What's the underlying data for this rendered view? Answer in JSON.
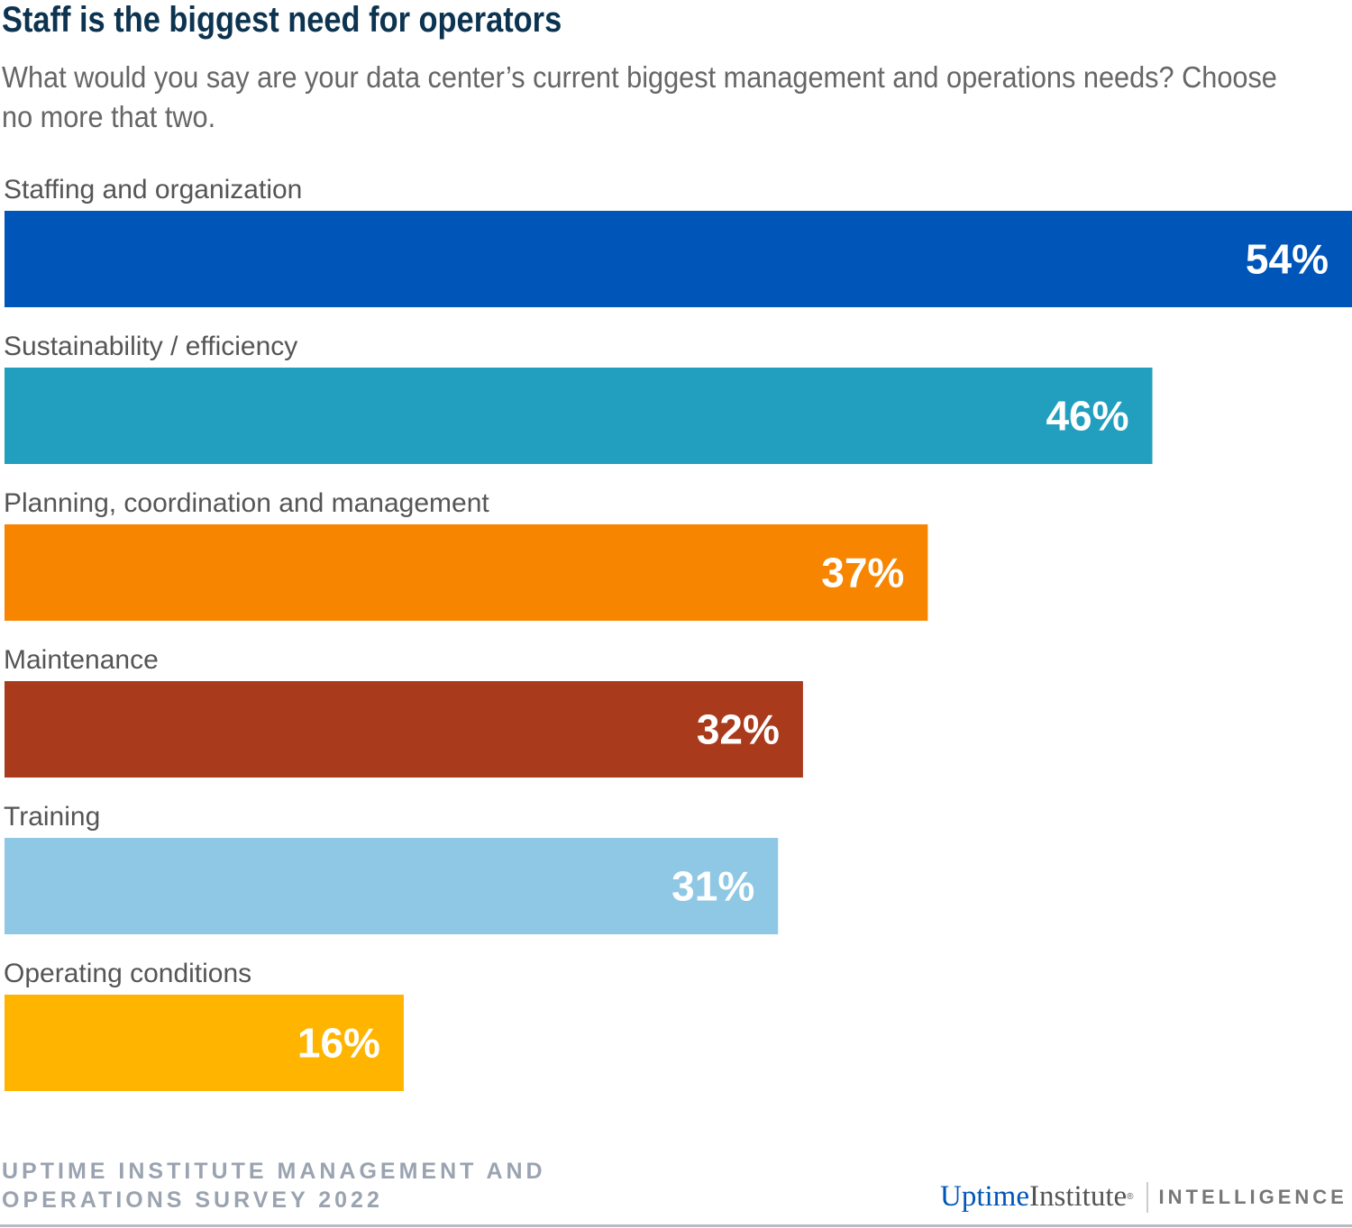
{
  "chart_data": {
    "type": "bar",
    "orientation": "horizontal",
    "title": "Staff is the biggest need for operators",
    "subtitle": "What would you say are your data center’s current biggest management and operations needs? Choose no more that two.",
    "categories": [
      "Staffing and organization",
      "Sustainability / efficiency",
      "Planning, coordination and management",
      "Maintenance",
      "Training",
      "Operating conditions"
    ],
    "values": [
      54,
      46,
      37,
      32,
      31,
      16
    ],
    "value_labels": [
      "54%",
      "46%",
      "37%",
      "32%",
      "31%",
      "16%"
    ],
    "colors": [
      "#0055b8",
      "#229fbe",
      "#f88500",
      "#a93b1c",
      "#8fc8e5",
      "#ffb500"
    ],
    "unit": "%",
    "xlim": [
      0,
      54
    ],
    "grid": false,
    "legend": "none"
  },
  "footer": {
    "source_line1": "UPTIME INSTITUTE MANAGEMENT AND",
    "source_line2": "OPERATIONS SURVEY 2022",
    "logo_uptime": "Uptime",
    "logo_institute": "Institute",
    "logo_reg": "®",
    "logo_intelligence": "INTELLIGENCE"
  }
}
